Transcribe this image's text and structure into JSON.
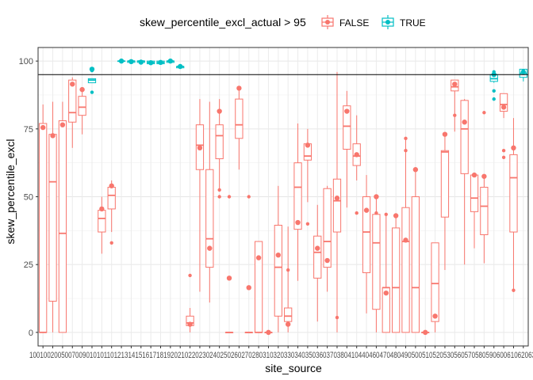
{
  "chart_data": {
    "type": "boxplot",
    "xlabel": "site_source",
    "ylabel": "skew_percentile_excl",
    "ylim": [
      -5,
      105
    ],
    "yticks": [
      0,
      25,
      50,
      75,
      100
    ],
    "grid": true,
    "hline": 95,
    "legend": {
      "position": "top",
      "title": "skew_percentile_excl_actual > 95",
      "entries": [
        {
          "label": "FALSE",
          "color": "#F8766D"
        },
        {
          "label": "TRUE",
          "color": "#00BFC4"
        }
      ]
    },
    "boxes": [
      {
        "cat": "1001",
        "q1": 0,
        "med": 0,
        "q3": 77,
        "lo": 0,
        "hi": 84,
        "mean": 75.5,
        "g": "FALSE",
        "out": []
      },
      {
        "cat": "1002",
        "q1": 11.5,
        "med": 55.5,
        "q3": 73,
        "lo": 0,
        "hi": 85,
        "mean": 72.5,
        "g": "FALSE",
        "out": []
      },
      {
        "cat": "1005",
        "q1": 0,
        "med": 36.5,
        "q3": 78,
        "lo": 0,
        "hi": 85,
        "mean": 76.5,
        "g": "FALSE",
        "out": []
      },
      {
        "cat": "1007",
        "q1": 77.5,
        "med": 81,
        "q3": 93,
        "lo": 68,
        "hi": 94,
        "mean": 91.5,
        "g": "FALSE",
        "out": []
      },
      {
        "cat": "1009",
        "q1": 80,
        "med": 83,
        "q3": 87,
        "lo": 73,
        "hi": 90,
        "mean": 89.5,
        "g": "FALSE",
        "out": []
      },
      {
        "cat": "1010",
        "q1": 92,
        "med": 93,
        "q3": 93.5,
        "lo": 92,
        "hi": 93.5,
        "mean": 97,
        "g": "TRUE",
        "out": [
          88.5,
          96.5
        ]
      },
      {
        "cat": "1011",
        "q1": 37,
        "med": 42,
        "q3": 45,
        "lo": 29,
        "hi": 50,
        "mean": 45.5,
        "g": "FALSE",
        "out": []
      },
      {
        "cat": "1012",
        "q1": 45.5,
        "med": 50.5,
        "q3": 53.5,
        "lo": 37,
        "hi": 56,
        "mean": 54,
        "g": "FALSE",
        "out": [
          33
        ]
      },
      {
        "cat": "1013",
        "q1": 100,
        "med": 100,
        "q3": 100,
        "lo": 100,
        "hi": 100,
        "mean": 100,
        "g": "TRUE",
        "out": []
      },
      {
        "cat": "1014",
        "q1": 99.5,
        "med": 100,
        "q3": 100,
        "lo": 99.5,
        "hi": 100,
        "mean": 99.8,
        "g": "TRUE",
        "out": []
      },
      {
        "cat": "1015",
        "q1": 99.5,
        "med": 100,
        "q3": 100,
        "lo": 99.5,
        "hi": 100,
        "mean": 99.6,
        "g": "TRUE",
        "out": []
      },
      {
        "cat": "1016",
        "q1": 99,
        "med": 99.5,
        "q3": 100,
        "lo": 99,
        "hi": 100,
        "mean": 99.4,
        "g": "TRUE",
        "out": []
      },
      {
        "cat": "1017",
        "q1": 99,
        "med": 99.5,
        "q3": 100,
        "lo": 99,
        "hi": 100,
        "mean": 99.5,
        "g": "TRUE",
        "out": []
      },
      {
        "cat": "1018",
        "q1": 99.5,
        "med": 100,
        "q3": 100,
        "lo": 99.5,
        "hi": 100,
        "mean": 100,
        "g": "TRUE",
        "out": []
      },
      {
        "cat": "1019",
        "q1": 97.5,
        "med": 98,
        "q3": 98,
        "lo": 97.5,
        "hi": 98,
        "mean": 98,
        "g": "TRUE",
        "out": []
      },
      {
        "cat": "1020",
        "q1": 2.5,
        "med": 3.5,
        "q3": 6,
        "lo": 0,
        "hi": 9,
        "mean": 3,
        "g": "FALSE",
        "out": [
          21
        ]
      },
      {
        "cat": "1021",
        "q1": 60,
        "med": 69,
        "q3": 76.5,
        "lo": 15,
        "hi": 86,
        "mean": 68,
        "g": "FALSE",
        "out": []
      },
      {
        "cat": "1022",
        "q1": 24,
        "med": 34.5,
        "q3": 60,
        "lo": 11,
        "hi": 85,
        "mean": 31,
        "g": "FALSE",
        "out": []
      },
      {
        "cat": "1023",
        "q1": 64,
        "med": 72.5,
        "q3": 76.5,
        "lo": 52,
        "hi": 86,
        "mean": 81.5,
        "g": "FALSE",
        "out": [
          52.5,
          50
        ]
      },
      {
        "cat": "1024",
        "q1": 0,
        "med": 0,
        "q3": 0,
        "lo": 0,
        "hi": 0,
        "mean": 20,
        "g": "FALSE",
        "out": [
          50
        ]
      },
      {
        "cat": "1025",
        "q1": 71.5,
        "med": 76.5,
        "q3": 86,
        "lo": 60,
        "hi": 90,
        "mean": 90,
        "g": "FALSE",
        "out": []
      },
      {
        "cat": "1026",
        "q1": 0,
        "med": 0,
        "q3": 0,
        "lo": 0,
        "hi": 0,
        "mean": 16.5,
        "g": "FALSE",
        "out": [
          50
        ]
      },
      {
        "cat": "1027",
        "q1": 0,
        "med": 0,
        "q3": 33.5,
        "lo": 0,
        "hi": 33.5,
        "mean": 27.5,
        "g": "FALSE",
        "out": []
      },
      {
        "cat": "1028",
        "q1": 0,
        "med": 0,
        "q3": 0,
        "lo": 0,
        "hi": 0,
        "mean": 0,
        "g": "FALSE",
        "out": []
      },
      {
        "cat": "1031",
        "q1": 6,
        "med": 24,
        "q3": 39.5,
        "lo": 0,
        "hi": 54,
        "mean": 28.5,
        "g": "FALSE",
        "out": []
      },
      {
        "cat": "1032",
        "q1": 4,
        "med": 6,
        "q3": 9,
        "lo": 0,
        "hi": 39,
        "mean": 3,
        "g": "FALSE",
        "out": [
          23
        ]
      },
      {
        "cat": "1033",
        "q1": 38,
        "med": 53.5,
        "q3": 62.5,
        "lo": 19,
        "hi": 77,
        "mean": 40.5,
        "g": "FALSE",
        "out": []
      },
      {
        "cat": "1034",
        "q1": 63.5,
        "med": 65,
        "q3": 69.5,
        "lo": 48,
        "hi": 75,
        "mean": 69,
        "g": "FALSE",
        "out": [
          40
        ]
      },
      {
        "cat": "1035",
        "q1": 20,
        "med": 29.5,
        "q3": 35.5,
        "lo": 4,
        "hi": 47,
        "mean": 31,
        "g": "FALSE",
        "out": []
      },
      {
        "cat": "1036",
        "q1": 24,
        "med": 33.5,
        "q3": 53,
        "lo": 15,
        "hi": 54,
        "mean": 26.5,
        "g": "FALSE",
        "out": []
      },
      {
        "cat": "1037",
        "q1": 37,
        "med": 48.5,
        "q3": 56.5,
        "lo": 0,
        "hi": 96,
        "mean": 49.5,
        "g": "FALSE",
        "out": [
          5.5
        ]
      },
      {
        "cat": "1038",
        "q1": 67.5,
        "med": 76,
        "q3": 83.5,
        "lo": 46,
        "hi": 89,
        "mean": 81.5,
        "g": "FALSE",
        "out": []
      },
      {
        "cat": "1041",
        "q1": 61.5,
        "med": 65,
        "q3": 69.5,
        "lo": 56,
        "hi": 80,
        "mean": 65.5,
        "g": "FALSE",
        "out": [
          44
        ]
      },
      {
        "cat": "1044",
        "q1": 22,
        "med": 37,
        "q3": 50,
        "lo": 7,
        "hi": 58,
        "mean": 45,
        "g": "FALSE",
        "out": []
      },
      {
        "cat": "1046",
        "q1": 8.5,
        "med": 33,
        "q3": 43.5,
        "lo": 0,
        "hi": 50,
        "mean": 50,
        "g": "FALSE",
        "out": [
          44
        ]
      },
      {
        "cat": "1047",
        "q1": 0,
        "med": 16.5,
        "q3": 16.5,
        "lo": 0,
        "hi": 43,
        "mean": 14.5,
        "g": "FALSE",
        "out": [
          43.5
        ]
      },
      {
        "cat": "1048",
        "q1": 0,
        "med": 16.5,
        "q3": 38.5,
        "lo": 0,
        "hi": 43.5,
        "mean": 43,
        "g": "FALSE",
        "out": []
      },
      {
        "cat": "1049",
        "q1": 0,
        "med": 33.5,
        "q3": 46,
        "lo": 0,
        "hi": 71.5,
        "mean": 34,
        "g": "FALSE",
        "out": [
          67,
          71.5
        ]
      },
      {
        "cat": "1050",
        "q1": 0,
        "med": 16.5,
        "q3": 50,
        "lo": 0,
        "hi": 60,
        "mean": 60,
        "g": "FALSE",
        "out": []
      },
      {
        "cat": "1051",
        "q1": 0,
        "med": 0,
        "q3": 0,
        "lo": 0,
        "hi": 0,
        "mean": 0,
        "g": "FALSE",
        "out": []
      },
      {
        "cat": "1052",
        "q1": 4,
        "med": 18,
        "q3": 33,
        "lo": 0,
        "hi": 33,
        "mean": 6,
        "g": "FALSE",
        "out": []
      },
      {
        "cat": "1053",
        "q1": 42.5,
        "med": 66.5,
        "q3": 67,
        "lo": 23,
        "hi": 73,
        "mean": 73,
        "g": "FALSE",
        "out": []
      },
      {
        "cat": "1056",
        "q1": 89,
        "med": 90.5,
        "q3": 93,
        "lo": 74,
        "hi": 93,
        "mean": 91.5,
        "g": "FALSE",
        "out": [
          80
        ]
      },
      {
        "cat": "1057",
        "q1": 58.5,
        "med": 75,
        "q3": 85.5,
        "lo": 25,
        "hi": 86,
        "mean": 77.5,
        "g": "FALSE",
        "out": []
      },
      {
        "cat": "1058",
        "q1": 44.5,
        "med": 49.5,
        "q3": 58,
        "lo": 31,
        "hi": 58,
        "mean": 58,
        "g": "FALSE",
        "out": []
      },
      {
        "cat": "1059",
        "q1": 36,
        "med": 46.5,
        "q3": 53.5,
        "lo": 25.5,
        "hi": 58,
        "mean": 57.5,
        "g": "FALSE",
        "out": [
          81
        ]
      },
      {
        "cat": "1060",
        "q1": 92.5,
        "med": 93.5,
        "q3": 95,
        "lo": 92,
        "hi": 95,
        "mean": 95,
        "g": "TRUE",
        "out": [
          89,
          86,
          96
        ]
      },
      {
        "cat": "1061",
        "q1": 81.5,
        "med": 84,
        "q3": 88,
        "lo": 79,
        "hi": 88,
        "mean": 83,
        "g": "FALSE",
        "out": [
          67,
          64.5
        ]
      },
      {
        "cat": "1062",
        "q1": 37,
        "med": 57,
        "q3": 65.5,
        "lo": 16,
        "hi": 79,
        "mean": 68,
        "g": "FALSE",
        "out": [
          15.5
        ]
      },
      {
        "cat": "1063",
        "q1": 94,
        "med": 95.5,
        "q3": 97,
        "lo": 92.5,
        "hi": 97,
        "mean": 96,
        "g": "TRUE",
        "out": []
      }
    ],
    "tick_labels": [
      "1001",
      "1002",
      "1005",
      "1007",
      "1009",
      "1010",
      "1011",
      "1012",
      "1013",
      "1014",
      "1015",
      "1016",
      "1017",
      "1018",
      "1019",
      "1020",
      "1021",
      "1022",
      "1023",
      "1024",
      "1025",
      "1026",
      "1027",
      "1028",
      "1031",
      "1032",
      "1033",
      "1034",
      "1035",
      "1036",
      "1037",
      "1038",
      "1041",
      "1044",
      "1046",
      "1047",
      "1048",
      "1049",
      "1050",
      "1051",
      "1052",
      "1053",
      "1056",
      "1057",
      "1058",
      "1059",
      "1060",
      "1061",
      "1062",
      "1063"
    ],
    "tick_label_text": "10010020050070090101011012131415161718192021022023024025026027028031032033034035036037038041044046047048049050051052053056057058059060061062063"
  }
}
